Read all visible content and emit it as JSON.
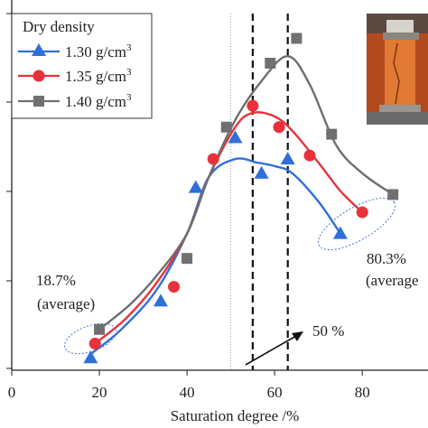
{
  "chart_data": {
    "type": "scatter",
    "xlabel": "Saturation degree /%",
    "ylabel": "",
    "xlim": [
      0,
      95
    ],
    "x_ticks": [
      0,
      20,
      40,
      60,
      80
    ],
    "ylim": [
      0,
      1
    ],
    "grid": false,
    "legend": {
      "title": "Dry density",
      "position": "top-left",
      "entries": [
        "1.30 g/cm",
        "1.35 g/cm",
        "1.40 g/cm"
      ],
      "superscript": "3"
    },
    "series": [
      {
        "name": "1.30 g/cm3",
        "marker": "triangle",
        "color": "#2f6fd8",
        "points": [
          [
            18,
            0.03
          ],
          [
            34,
            0.19
          ],
          [
            42,
            0.51
          ],
          [
            51,
            0.65
          ],
          [
            57,
            0.55
          ],
          [
            63,
            0.59
          ],
          [
            75,
            0.38
          ]
        ]
      },
      {
        "name": "1.35 g/cm3",
        "marker": "circle",
        "color": "#e8313b",
        "points": [
          [
            19,
            0.07
          ],
          [
            37,
            0.23
          ],
          [
            46,
            0.59
          ],
          [
            55,
            0.74
          ],
          [
            61,
            0.68
          ],
          [
            68,
            0.6
          ],
          [
            80,
            0.44
          ]
        ]
      },
      {
        "name": "1.40 g/cm3",
        "marker": "square",
        "color": "#707070",
        "points": [
          [
            20,
            0.11
          ],
          [
            40,
            0.31
          ],
          [
            49,
            0.68
          ],
          [
            59,
            0.86
          ],
          [
            65,
            0.93
          ],
          [
            73,
            0.66
          ],
          [
            87,
            0.49
          ]
        ]
      }
    ],
    "fit_curves": [
      {
        "series": "1.30 g/cm3",
        "color": "#2f6fd8",
        "points": [
          [
            18,
            0.04
          ],
          [
            25,
            0.11
          ],
          [
            33,
            0.22
          ],
          [
            40,
            0.38
          ],
          [
            45,
            0.54
          ],
          [
            51,
            0.59
          ],
          [
            56,
            0.58
          ],
          [
            60,
            0.57
          ],
          [
            64,
            0.55
          ],
          [
            70,
            0.47
          ],
          [
            75,
            0.38
          ]
        ]
      },
      {
        "series": "1.35 g/cm3",
        "color": "#e8313b",
        "points": [
          [
            19,
            0.07
          ],
          [
            26,
            0.14
          ],
          [
            33,
            0.24
          ],
          [
            40,
            0.38
          ],
          [
            45,
            0.54
          ],
          [
            51,
            0.68
          ],
          [
            55,
            0.72
          ],
          [
            60,
            0.71
          ],
          [
            64,
            0.67
          ],
          [
            70,
            0.58
          ],
          [
            75,
            0.5
          ],
          [
            80,
            0.44
          ]
        ]
      },
      {
        "series": "1.40 g/cm3",
        "color": "#6e6e6e",
        "points": [
          [
            20,
            0.11
          ],
          [
            27,
            0.18
          ],
          [
            33,
            0.26
          ],
          [
            40,
            0.38
          ],
          [
            45,
            0.54
          ],
          [
            51,
            0.7
          ],
          [
            57,
            0.81
          ],
          [
            63,
            0.88
          ],
          [
            68,
            0.8
          ],
          [
            74,
            0.63
          ],
          [
            80,
            0.55
          ],
          [
            87,
            0.49
          ]
        ]
      }
    ],
    "reference_lines": {
      "dashed": [
        55,
        63
      ],
      "dotted": [
        50
      ]
    },
    "annotations": {
      "left_value": "18.7%",
      "left_average": "(average)",
      "right_value": "80.3%",
      "right_average": "(average",
      "middle_label": "50 %"
    }
  }
}
